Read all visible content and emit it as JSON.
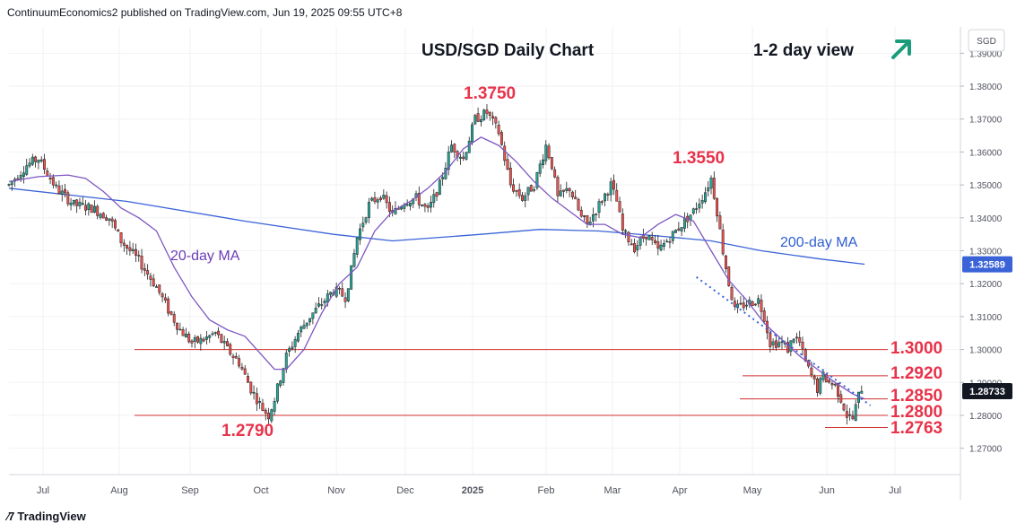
{
  "header": {
    "publisher_line": "ContinuumEconomics2 published on TradingView.com, Jun 19, 2025 09:55 UTC+8"
  },
  "footer": {
    "brand": "TradingView"
  },
  "colors": {
    "up_candle": "#26a69a",
    "down_candle": "#ef5350",
    "ma20": "#7e57c2",
    "ma200": "#3a63d8",
    "levels": "#d32f2f",
    "annotation": "#e8334a",
    "trend_arrow": "#1a9c7a",
    "trendline": "#3a63d8"
  },
  "chart_data": {
    "type": "candlestick",
    "title": "USD/SGD Daily Chart",
    "subtitle": "1-2 day view",
    "currency": "SGD",
    "view_icon": "up-right-arrow-icon",
    "y_axis": {
      "min": 1.262,
      "max": 1.398,
      "ticks": [
        "1.39000",
        "1.38000",
        "1.37000",
        "1.36000",
        "1.35000",
        "1.34000",
        "1.33000",
        "1.32000",
        "1.31000",
        "1.30000",
        "1.29000",
        "1.28000",
        "1.27000"
      ]
    },
    "x_axis": {
      "tick_labels": [
        "Jul",
        "Aug",
        "Sep",
        "Oct",
        "Nov",
        "Dec",
        "2025",
        "Feb",
        "Mar",
        "Apr",
        "May",
        "Jun",
        "Jul"
      ]
    },
    "price_badges": [
      {
        "label": "1.32589",
        "value": 1.32589,
        "kind": "200-day MA"
      },
      {
        "label": "1.28733",
        "value": 1.28733,
        "kind": "last price"
      }
    ],
    "horizontal_levels": [
      {
        "value": 1.3,
        "label": "1.3000",
        "from": "Aug 2024"
      },
      {
        "value": 1.292,
        "label": "1.2920",
        "from": "May 2025"
      },
      {
        "value": 1.285,
        "label": "1.2850",
        "from": "May 2025"
      },
      {
        "value": 1.28,
        "label": "1.2800",
        "from": "Jul 2024"
      },
      {
        "value": 1.2763,
        "label": "1.2763",
        "from": "Jun 2025"
      }
    ],
    "annotations": [
      {
        "label": "1.3750",
        "value": 1.375,
        "at": "Jan 2025"
      },
      {
        "label": "1.3550",
        "value": 1.355,
        "at": "Apr 2025"
      },
      {
        "label": "1.2790",
        "value": 1.279,
        "at": "Sep 2024"
      }
    ],
    "moving_averages": [
      {
        "name": "20-day MA",
        "points": [
          [
            0,
            1.351
          ],
          [
            10,
            1.3525
          ],
          [
            20,
            1.353
          ],
          [
            26,
            1.352
          ],
          [
            32,
            1.348
          ],
          [
            38,
            1.343
          ],
          [
            44,
            1.34
          ],
          [
            50,
            1.336
          ],
          [
            56,
            1.325
          ],
          [
            62,
            1.316
          ],
          [
            68,
            1.309
          ],
          [
            74,
            1.306
          ],
          [
            80,
            1.304
          ],
          [
            86,
            1.298
          ],
          [
            90,
            1.294
          ],
          [
            94,
            1.294
          ],
          [
            100,
            1.3
          ],
          [
            106,
            1.311
          ],
          [
            112,
            1.32
          ],
          [
            118,
            1.325
          ],
          [
            124,
            1.336
          ],
          [
            130,
            1.342
          ],
          [
            136,
            1.345
          ],
          [
            142,
            1.349
          ],
          [
            148,
            1.354
          ],
          [
            154,
            1.361
          ],
          [
            160,
            1.3645
          ],
          [
            166,
            1.362
          ],
          [
            172,
            1.357
          ],
          [
            178,
            1.351
          ],
          [
            184,
            1.346
          ],
          [
            190,
            1.342
          ],
          [
            196,
            1.338
          ],
          [
            202,
            1.338
          ],
          [
            208,
            1.335
          ],
          [
            214,
            1.334
          ],
          [
            220,
            1.338
          ],
          [
            226,
            1.341
          ],
          [
            232,
            1.339
          ],
          [
            238,
            1.33
          ],
          [
            244,
            1.321
          ],
          [
            250,
            1.315
          ],
          [
            256,
            1.308
          ],
          [
            262,
            1.303
          ],
          [
            268,
            1.298
          ],
          [
            274,
            1.294
          ],
          [
            280,
            1.29
          ],
          [
            286,
            1.2865
          ],
          [
            290,
            1.285
          ]
        ]
      },
      {
        "name": "200-day MA",
        "points": [
          [
            0,
            1.349
          ],
          [
            40,
            1.345
          ],
          [
            80,
            1.339
          ],
          [
            110,
            1.335
          ],
          [
            130,
            1.333
          ],
          [
            160,
            1.335
          ],
          [
            180,
            1.3365
          ],
          [
            200,
            1.336
          ],
          [
            220,
            1.3345
          ],
          [
            238,
            1.333
          ],
          [
            255,
            1.33
          ],
          [
            275,
            1.3275
          ],
          [
            290,
            1.3259
          ]
        ]
      }
    ],
    "trendline": {
      "style": "dotted",
      "from": [
        233,
        1.322
      ],
      "to": [
        292,
        1.283
      ]
    },
    "last_candle_index": 289
  }
}
